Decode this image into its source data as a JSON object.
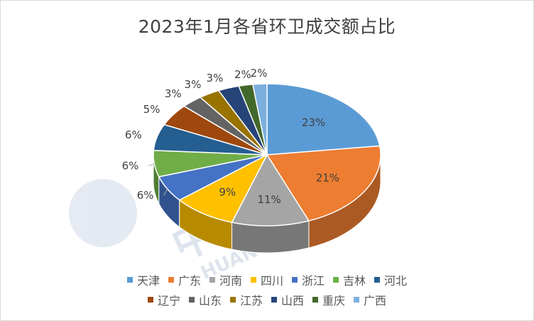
{
  "chart_data": {
    "type": "pie",
    "title": "2023年1月各省环卫成交额占比",
    "categories": [
      "天津",
      "广东",
      "河南",
      "四川",
      "浙江",
      "吉林",
      "河北",
      "辽宁",
      "山东",
      "江苏",
      "山西",
      "重庆",
      "广西"
    ],
    "values": [
      23,
      21,
      11,
      9,
      6,
      6,
      6,
      5,
      3,
      3,
      3,
      2,
      2
    ],
    "labels": [
      "23%",
      "21%",
      "11%",
      "9%",
      "6%",
      "6%",
      "6%",
      "5%",
      "3%",
      "3%",
      "3%",
      "2%",
      "2%"
    ],
    "colors": [
      "#5b9bd5",
      "#ed7d31",
      "#a5a5a5",
      "#ffc000",
      "#4472c4",
      "#70ad47",
      "#255e91",
      "#9e480e",
      "#636363",
      "#997300",
      "#264478",
      "#43682b",
      "#7cafdd"
    ],
    "legend_position": "bottom",
    "legend_rows": [
      [
        0,
        1,
        2,
        3,
        4,
        5,
        6
      ],
      [
        7,
        8,
        9,
        10,
        11,
        12
      ]
    ]
  },
  "watermark": {
    "text_cn": "中国环卫网",
    "text_url": "HUANWEI.COM.CN"
  }
}
